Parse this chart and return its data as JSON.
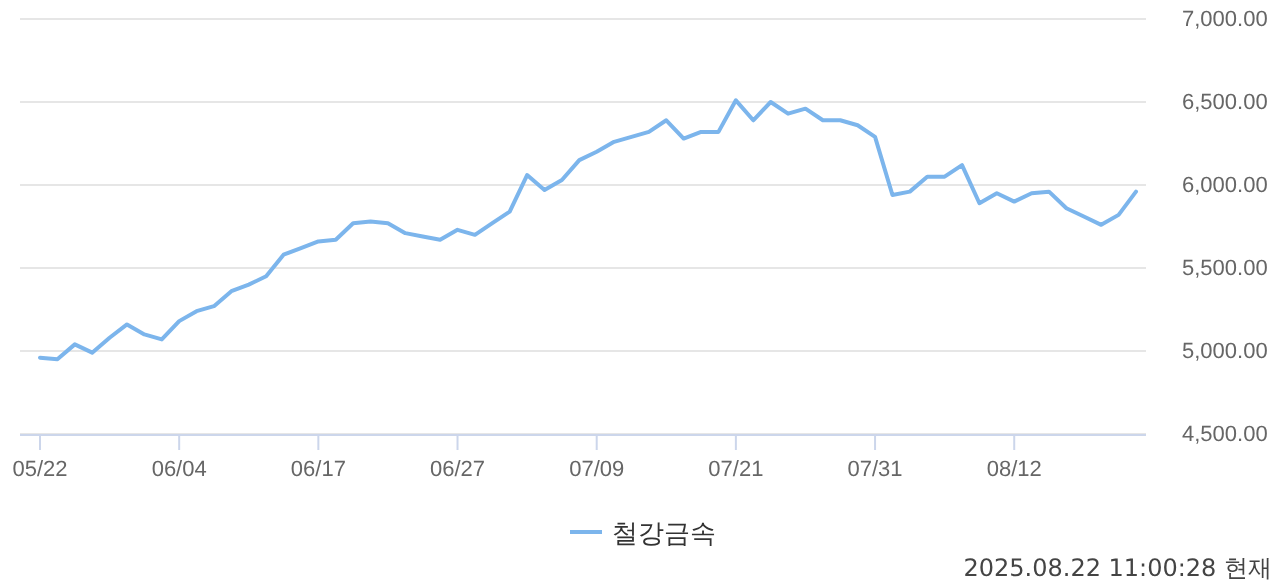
{
  "chart_data": {
    "type": "line",
    "categories": [
      "05/22",
      null,
      null,
      null,
      null,
      null,
      null,
      null,
      "06/04",
      null,
      null,
      null,
      null,
      null,
      null,
      null,
      "06/17",
      null,
      null,
      null,
      null,
      null,
      null,
      null,
      "06/27",
      null,
      null,
      null,
      null,
      null,
      null,
      null,
      "07/09",
      null,
      null,
      null,
      null,
      null,
      null,
      null,
      "07/21",
      null,
      null,
      null,
      null,
      null,
      null,
      null,
      "07/31",
      null,
      null,
      null,
      null,
      null,
      null,
      null,
      "08/12",
      null,
      null,
      null,
      null,
      null,
      null,
      null
    ],
    "series": [
      {
        "name": "철강금속",
        "color": "#7cb5ec",
        "values": [
          4960,
          4950,
          5040,
          4990,
          5080,
          5160,
          5100,
          5070,
          5180,
          5240,
          5270,
          5360,
          5400,
          5450,
          5580,
          5620,
          5660,
          5670,
          5770,
          5780,
          5770,
          5710,
          5690,
          5670,
          5730,
          5700,
          5770,
          5840,
          6060,
          5970,
          6030,
          6150,
          6200,
          6260,
          6290,
          6320,
          6390,
          6280,
          6320,
          6320,
          6510,
          6390,
          6500,
          6430,
          6460,
          6390,
          6390,
          6360,
          6290,
          5940,
          5960,
          6050,
          6050,
          6120,
          5890,
          5950,
          5900,
          5950,
          5960,
          5860,
          5810,
          5760,
          5820,
          5960
        ]
      }
    ],
    "ylim": [
      4500,
      7000
    ],
    "yticks": [
      {
        "value": 4500,
        "label": "4,500.00"
      },
      {
        "value": 5000,
        "label": "5,000.00"
      },
      {
        "value": 5500,
        "label": "5,500.00"
      },
      {
        "value": 6000,
        "label": "6,000.00"
      },
      {
        "value": 6500,
        "label": "6,500.00"
      },
      {
        "value": 7000,
        "label": "7,000.00"
      }
    ],
    "grid": "y",
    "legend": "bottom",
    "marker": "none",
    "line_style": "solid",
    "annotations": [
      "2025.08.22 11:00:28 현재"
    ]
  }
}
